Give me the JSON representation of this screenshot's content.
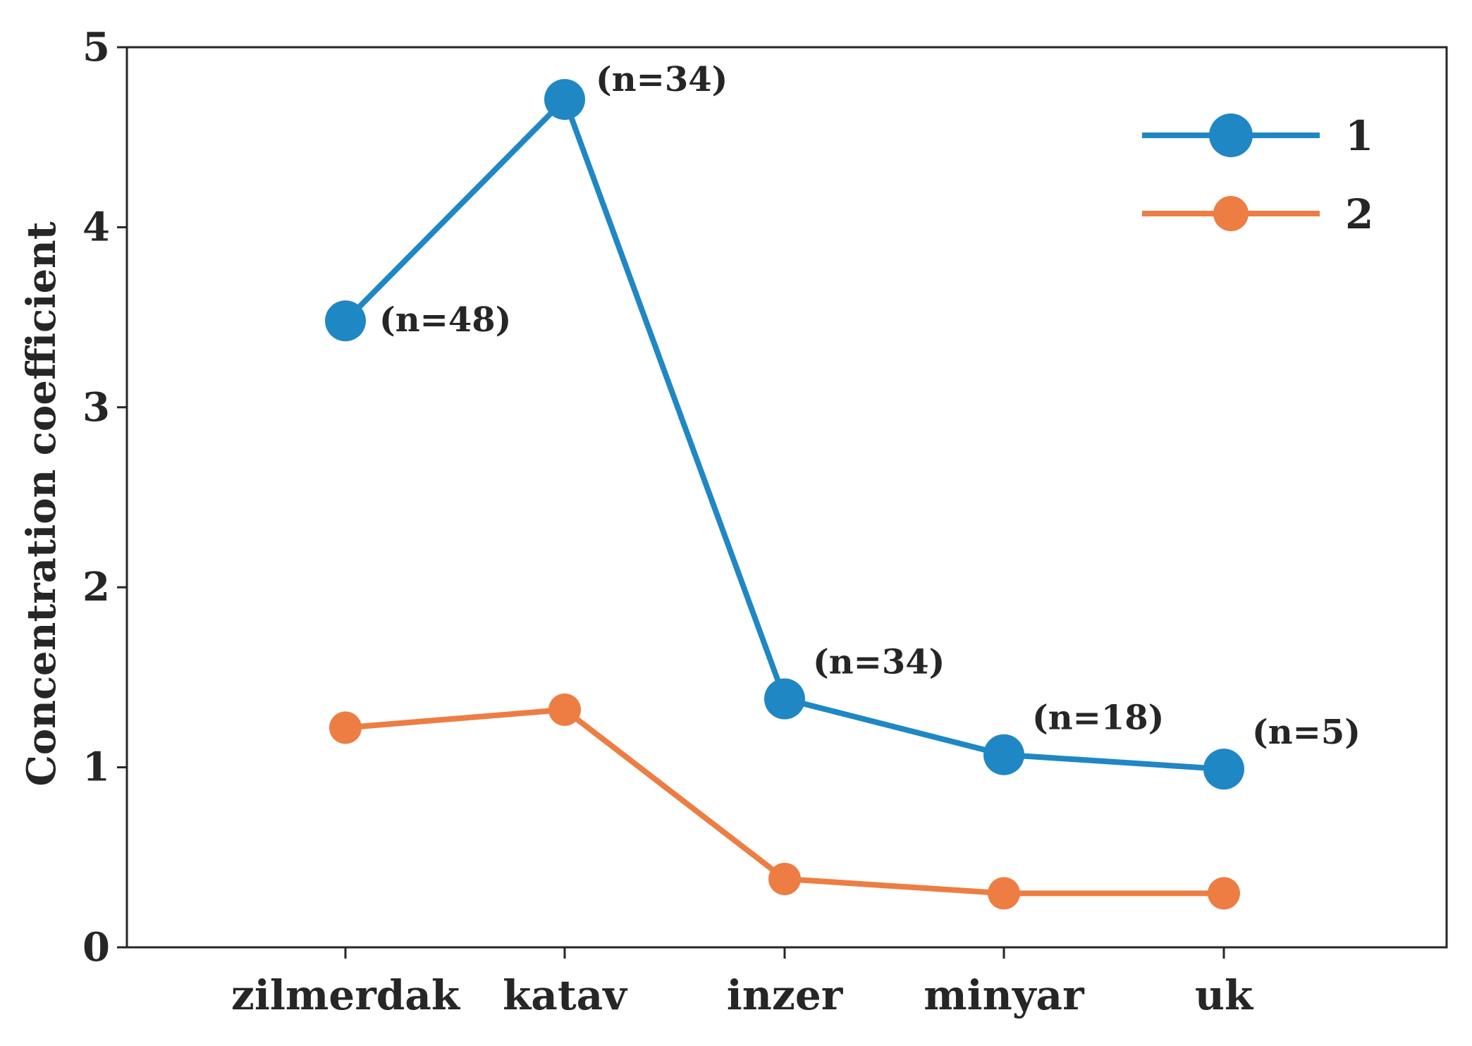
{
  "chart_data": {
    "type": "line",
    "ylabel": "Concentration coefficient",
    "xlabel": "",
    "ylim": [
      0,
      5
    ],
    "yticks": [
      0,
      1,
      2,
      3,
      4,
      5
    ],
    "categories": [
      "zilmerdak",
      "katav",
      "inzer",
      "minyar",
      "uk"
    ],
    "series": [
      {
        "name": "1",
        "color": "#1f87c4",
        "values": [
          3.48,
          4.71,
          1.38,
          1.07,
          0.99
        ],
        "annotations": [
          "(n=48)",
          "(n=34)",
          "(n=34)",
          "(n=18)",
          "(n=5)"
        ]
      },
      {
        "name": "2",
        "color": "#ed7d43",
        "values": [
          1.22,
          1.32,
          0.38,
          0.3,
          0.3
        ]
      }
    ],
    "legend_position": "top-right",
    "grid": false
  }
}
